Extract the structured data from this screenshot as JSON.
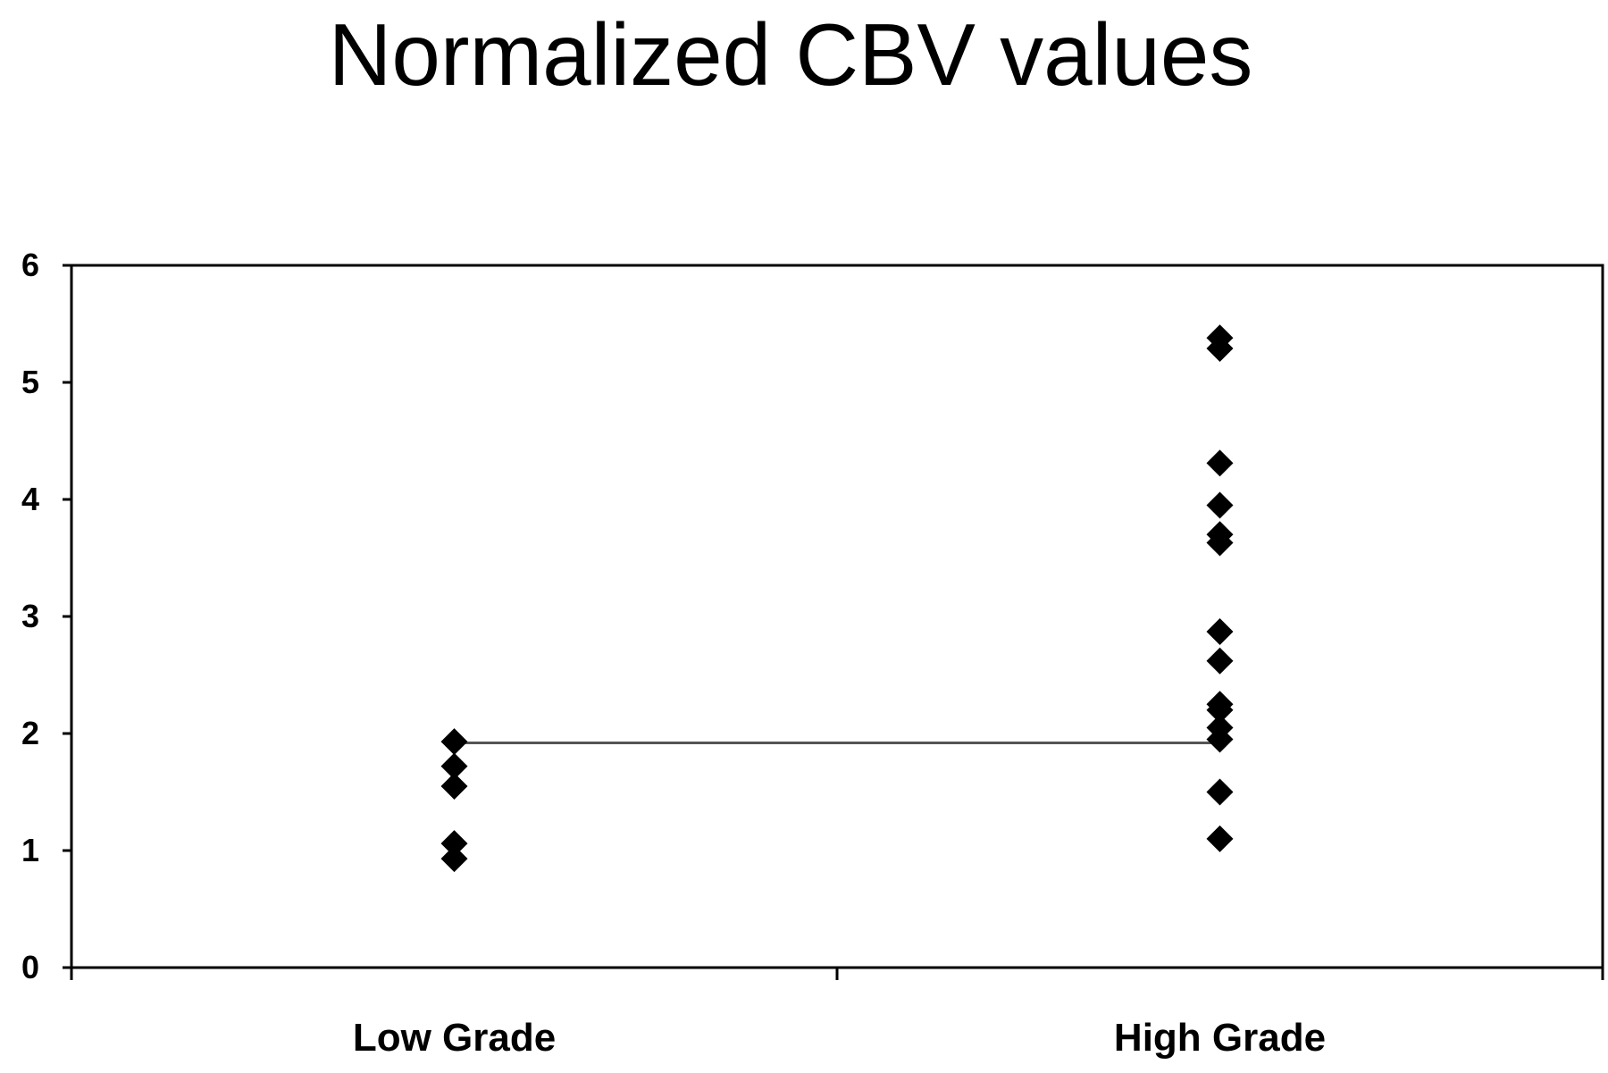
{
  "chart_data": {
    "type": "scatter",
    "title": "Normalized CBV values",
    "xlabel": "",
    "ylabel": "",
    "categories": [
      "Low Grade",
      "High Grade"
    ],
    "ylim": [
      0,
      6
    ],
    "yticks": [
      "0",
      "1",
      "2",
      "3",
      "4",
      "5",
      "6"
    ],
    "grid": false,
    "legend": "none",
    "marker": "diamond",
    "marker_color": "#000000",
    "series": [
      {
        "category": "Low Grade",
        "values": [
          1.93,
          1.72,
          1.55,
          1.06,
          0.93
        ]
      },
      {
        "category": "High Grade",
        "values": [
          5.38,
          5.29,
          4.31,
          3.95,
          3.7,
          3.63,
          2.87,
          2.62,
          2.25,
          2.2,
          2.05,
          1.95,
          1.5,
          1.1
        ]
      }
    ],
    "reference_line": {
      "y": 1.92,
      "from": "Low Grade",
      "to": "High Grade",
      "color": "#555555"
    }
  }
}
